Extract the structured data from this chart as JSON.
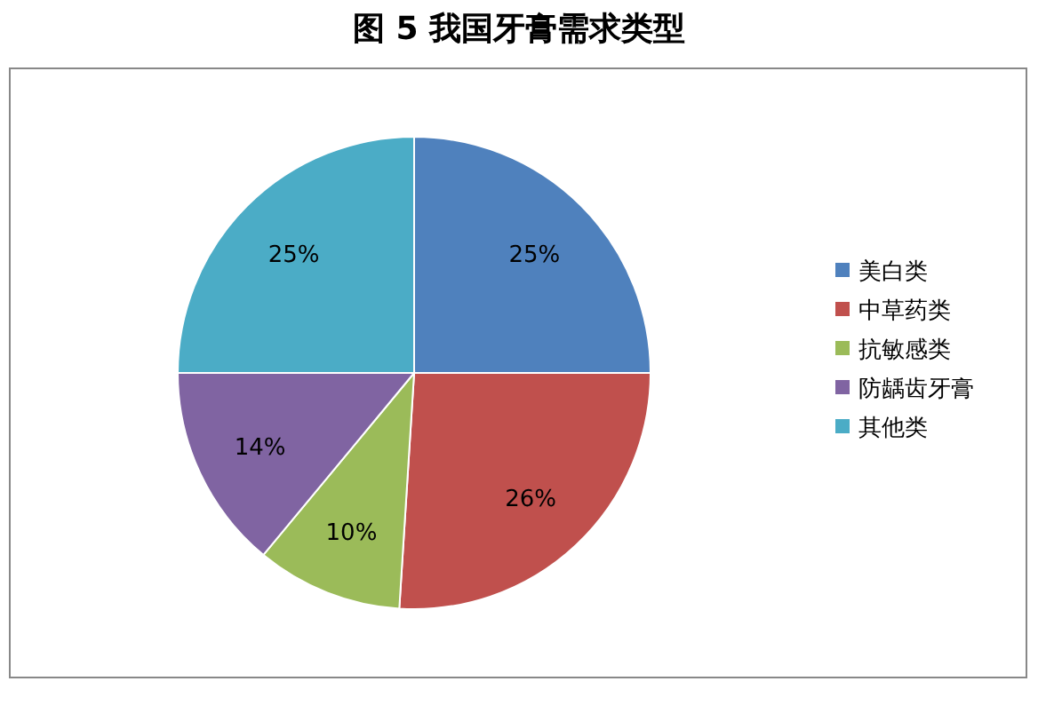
{
  "chart_data": {
    "type": "pie",
    "title": "图 5  我国牙膏需求类型",
    "categories": [
      "美白类",
      "中草药类",
      "抗敏感类",
      "防龋齿牙膏",
      "其他类"
    ],
    "values": [
      25,
      26,
      10,
      14,
      25
    ],
    "colors": [
      "#4f81bd",
      "#c0504d",
      "#9bbb59",
      "#8064a2",
      "#4bacc6"
    ],
    "value_labels": [
      "25%",
      "26%",
      "10%",
      "14%",
      "25%"
    ],
    "legend": "right"
  }
}
